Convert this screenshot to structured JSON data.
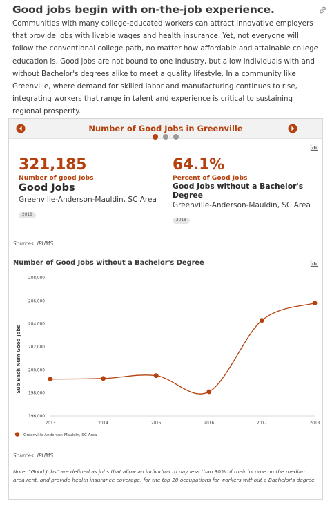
{
  "headline": "Good jobs begin with on-the-job experience.",
  "intro": "Communities with many college-educated workers can attract innovative employers that provide jobs with livable wages and health insurance. Yet, not everyone will follow the conventional college path, no matter how affordable and attainable college education is. Good jobs are not bound to one industry, but allow individuals with and without Bachelor's degrees alike to meet a quality lifestyle. In a community like Greenville, where demand for skilled labor and manufacturing continues to rise, integrating workers that range in talent and experience is critical to sustaining regional prosperity.",
  "carousel": {
    "title": "Number of Good Jobs in Greenville",
    "active_index": 0,
    "dot_count": 3,
    "accent": "#b5410e",
    "inactive_dot": "#9a9a9a"
  },
  "stats": [
    {
      "value": "321,185",
      "subtitle": "Number of good Jobs",
      "title": "Good Jobs",
      "location": "Greenville-Anderson-Mauldin, SC Area",
      "year": "2018"
    },
    {
      "value": "64.1%",
      "subtitle": "Percent of Good Jobs",
      "title": "Good Jobs without a Bachelor's Degree",
      "location": "Greenville-Anderson-Mauldin, SC Area",
      "year": "2018"
    }
  ],
  "sources_top": "Sources: IPUMS",
  "chart_title": "Number of Good Jobs without a Bachelor's Degree",
  "sources_bottom": "Sources: IPUMS",
  "note": "Note: \"Good Jobs\" are defined as jobs that allow an individual to pay less than 30% of their income on the median area rent, and provide health insurance coverage, for the top 20 occupations for workers without a Bachelor's degree.",
  "chart_data": {
    "type": "line",
    "title": "Number of Good Jobs without a Bachelor's Degree",
    "xlabel": "",
    "ylabel": "Sub Bach Num Good Jobs",
    "x": [
      "2013",
      "2014",
      "2015",
      "2016",
      "2017",
      "2018"
    ],
    "series": [
      {
        "name": "Greenville-Anderson-Mauldin, SC Area",
        "color": "#b5410e",
        "values": [
          199200,
          199250,
          199500,
          198100,
          204300,
          205800
        ]
      }
    ],
    "ylim": [
      196000,
      208000
    ],
    "yticks": [
      "196,000",
      "198,000",
      "200,000",
      "202,000",
      "204,000",
      "206,000",
      "208,000"
    ],
    "grid": false,
    "legend": "bottom-left"
  }
}
